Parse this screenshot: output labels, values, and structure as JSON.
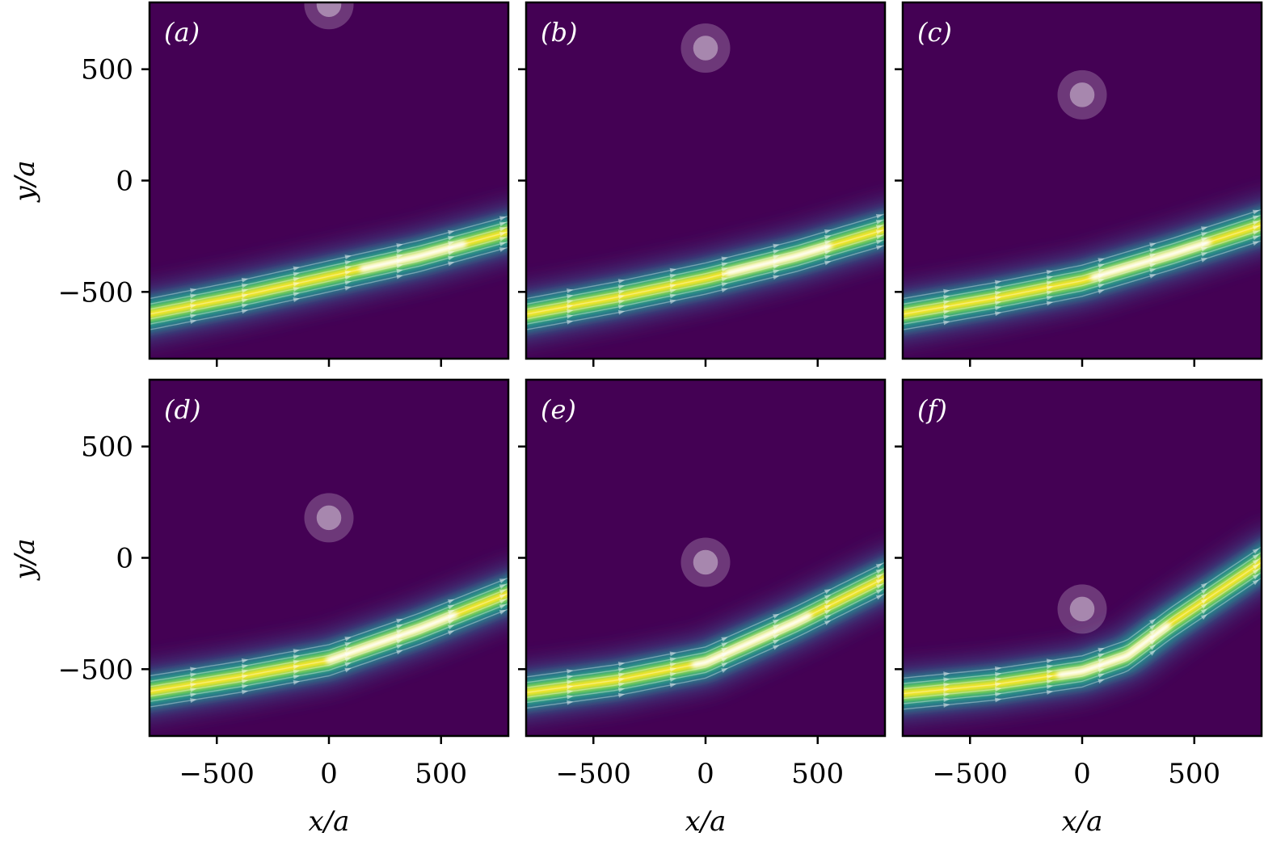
{
  "chart_data": {
    "type": "heatmap",
    "layout": "2x3 small multiples",
    "shared_x_label": "x/a",
    "shared_y_label": "y/a",
    "xlim": [
      -800,
      800
    ],
    "ylim": [
      -800,
      800
    ],
    "x_ticks": [
      -500,
      0,
      500
    ],
    "x_tick_labels": [
      "−500",
      "0",
      "500"
    ],
    "y_ticks": [
      -500,
      0,
      500
    ],
    "y_tick_labels": [
      "−500",
      "0",
      "500"
    ],
    "colormap": [
      "#440154",
      "#3b528b",
      "#21918c",
      "#5ec962",
      "#fde725",
      "#ffffff"
    ],
    "obstacle": {
      "x": 0,
      "radius_inner": 55,
      "radius_outer": 110,
      "color": "#ffffff"
    },
    "panels": [
      {
        "label": "(a)",
        "obstacle_y": 790,
        "beam_path": [
          [
            -800,
            -600
          ],
          [
            -400,
            -520
          ],
          [
            0,
            -430
          ],
          [
            400,
            -340
          ],
          [
            800,
            -230
          ]
        ],
        "peak_range": [
          150,
          600
        ]
      },
      {
        "label": "(b)",
        "obstacle_y": 595,
        "beam_path": [
          [
            -800,
            -600
          ],
          [
            -400,
            -525
          ],
          [
            0,
            -440
          ],
          [
            400,
            -340
          ],
          [
            800,
            -220
          ]
        ],
        "peak_range": [
          100,
          550
        ]
      },
      {
        "label": "(c)",
        "obstacle_y": 385,
        "beam_path": [
          [
            -800,
            -600
          ],
          [
            -400,
            -530
          ],
          [
            0,
            -450
          ],
          [
            400,
            -330
          ],
          [
            800,
            -200
          ]
        ],
        "peak_range": [
          50,
          560
        ]
      },
      {
        "label": "(d)",
        "obstacle_y": 180,
        "beam_path": [
          [
            -800,
            -600
          ],
          [
            -400,
            -535
          ],
          [
            0,
            -460
          ],
          [
            400,
            -320
          ],
          [
            800,
            -160
          ]
        ],
        "peak_range": [
          0,
          560
        ]
      },
      {
        "label": "(e)",
        "obstacle_y": -20,
        "beam_path": [
          [
            -800,
            -605
          ],
          [
            -400,
            -550
          ],
          [
            0,
            -470
          ],
          [
            400,
            -290
          ],
          [
            800,
            -90
          ]
        ],
        "peak_range": [
          -50,
          460
        ]
      },
      {
        "label": "(f)",
        "obstacle_y": -230,
        "beam_path": [
          [
            -800,
            -610
          ],
          [
            -400,
            -570
          ],
          [
            0,
            -510
          ],
          [
            200,
            -440
          ],
          [
            400,
            -290
          ],
          [
            800,
            -20
          ]
        ],
        "peak_range": [
          -100,
          380
        ]
      }
    ]
  }
}
